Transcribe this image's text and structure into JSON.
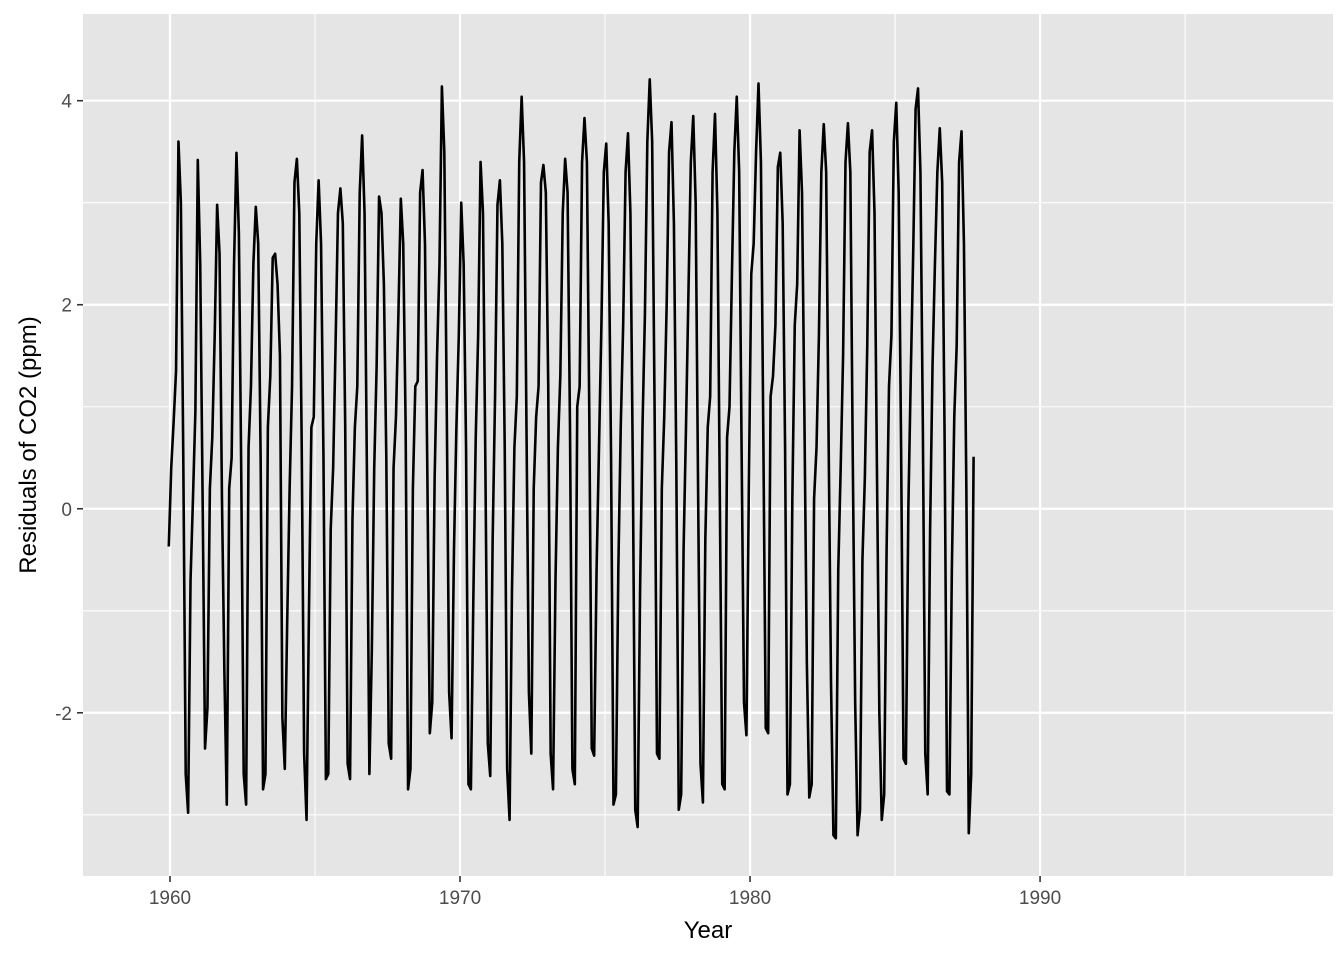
{
  "chart_data": {
    "type": "line",
    "title": "",
    "xlabel": "Year",
    "ylabel": "Residuals of CO2 (ppm)",
    "xlim": [
      1957.0,
      2000.1
    ],
    "ylim": [
      -3.6,
      4.85
    ],
    "x_ticks": [
      1960,
      1970,
      1980,
      1990
    ],
    "x_tick_labels": [
      "1960",
      "1970",
      "1980",
      "1990"
    ],
    "y_ticks": [
      -2,
      0,
      2,
      4
    ],
    "y_tick_labels": [
      "-2",
      "0",
      "2",
      "4"
    ],
    "grid": true,
    "colors": {
      "panel": "#e5e5e5",
      "grid": "#ffffff",
      "line": "#000000",
      "tick_text": "#4d4d4d"
    },
    "x_start": 1959.958,
    "x_step": 0.0833333,
    "series": [
      {
        "values": [
          -0.37,
          0.4,
          0.85,
          1.35,
          3.6,
          3.0,
          0.5,
          -2.6,
          -2.98,
          -0.7,
          0.1,
          0.95,
          3.42,
          2.4,
          0.1,
          -2.35,
          -1.95,
          0.2,
          0.7,
          1.7,
          2.98,
          2.5,
          0.1,
          -1.6,
          -2.9,
          0.2,
          0.5,
          2.4,
          3.49,
          2.7,
          0.3,
          -2.6,
          -2.9,
          0.6,
          1.2,
          2.4,
          2.96,
          2.6,
          0.5,
          -2.75,
          -2.6,
          0.8,
          1.3,
          2.46,
          2.5,
          2.2,
          1.5,
          -2.05,
          -2.55,
          -1.1,
          0.2,
          1.2,
          3.2,
          3.43,
          2.9,
          0.6,
          -2.4,
          -3.05,
          -1.0,
          0.8,
          0.9,
          2.6,
          3.22,
          2.6,
          0.5,
          -2.65,
          -2.6,
          -0.2,
          0.4,
          1.6,
          2.9,
          3.14,
          2.8,
          0.8,
          -2.5,
          -2.65,
          -0.1,
          0.8,
          1.2,
          3.1,
          3.66,
          2.9,
          0.3,
          -2.6,
          -1.4,
          0.4,
          1.4,
          3.06,
          2.9,
          2.2,
          0.5,
          -2.3,
          -2.45,
          0.4,
          0.9,
          1.9,
          3.04,
          2.6,
          0.8,
          -2.75,
          -2.55,
          0.2,
          1.2,
          1.25,
          3.1,
          3.32,
          2.6,
          0.3,
          -2.2,
          -1.9,
          0.3,
          1.5,
          2.4,
          4.14,
          3.5,
          1.0,
          -1.8,
          -2.25,
          -0.4,
          0.8,
          1.7,
          3.0,
          2.4,
          0.6,
          -2.7,
          -2.75,
          -0.9,
          0.7,
          1.7,
          3.4,
          2.9,
          0.4,
          -2.3,
          -2.62,
          -0.3,
          1.1,
          2.98,
          3.22,
          2.6,
          0.6,
          -2.55,
          -3.05,
          -0.8,
          0.6,
          1.1,
          3.4,
          4.04,
          3.4,
          0.8,
          -1.8,
          -2.4,
          0.2,
          0.9,
          1.2,
          3.2,
          3.37,
          3.1,
          1.2,
          -2.4,
          -2.75,
          -0.7,
          0.6,
          1.3,
          2.9,
          3.43,
          3.1,
          0.8,
          -2.55,
          -2.7,
          1.0,
          1.2,
          3.4,
          3.83,
          3.4,
          0.9,
          -2.35,
          -2.42,
          -0.6,
          0.6,
          1.8,
          3.3,
          3.58,
          2.8,
          0.5,
          -2.9,
          -2.8,
          -0.6,
          0.8,
          1.8,
          3.3,
          3.68,
          2.9,
          0.4,
          -2.95,
          -3.12,
          -0.8,
          0.8,
          1.9,
          3.6,
          4.21,
          3.6,
          1.0,
          -2.4,
          -2.45,
          0.2,
          0.9,
          2.0,
          3.5,
          3.79,
          2.8,
          0.4,
          -2.95,
          -2.8,
          -0.4,
          0.8,
          2.1,
          3.4,
          3.85,
          3.0,
          0.2,
          -2.5,
          -2.88,
          -0.3,
          0.8,
          1.1,
          3.3,
          3.87,
          2.9,
          0.1,
          -2.7,
          -2.75,
          0.7,
          1.0,
          2.3,
          3.5,
          4.04,
          3.3,
          0.6,
          -1.9,
          -2.22,
          0.2,
          2.3,
          2.6,
          3.5,
          4.17,
          3.4,
          0.7,
          -2.15,
          -2.2,
          1.1,
          1.3,
          1.8,
          3.35,
          3.49,
          2.8,
          0.6,
          -2.8,
          -2.7,
          0.1,
          1.8,
          2.2,
          3.71,
          3.1,
          0.9,
          -1.5,
          -2.83,
          -2.7,
          0.1,
          0.6,
          1.7,
          3.3,
          3.77,
          3.3,
          0.7,
          -1.7,
          -3.2,
          -3.23,
          -0.6,
          0.4,
          1.5,
          3.4,
          3.78,
          3.3,
          0.5,
          -1.9,
          -3.2,
          -2.95,
          -0.5,
          0.3,
          1.6,
          3.5,
          3.71,
          2.9,
          0.4,
          -2.0,
          -3.05,
          -2.8,
          -0.4,
          1.2,
          1.7,
          3.6,
          3.98,
          3.1,
          0.6,
          -2.45,
          -2.5,
          0.0,
          1.3,
          2.5,
          3.92,
          4.12,
          3.3,
          0.8,
          -2.4,
          -2.8,
          -0.2,
          1.4,
          2.4,
          3.3,
          3.73,
          3.2,
          0.7,
          -2.77,
          -2.8,
          -0.6,
          0.9,
          1.6,
          3.4,
          3.7,
          2.6,
          0.2,
          -3.18,
          -2.6,
          0.51
        ]
      }
    ]
  }
}
